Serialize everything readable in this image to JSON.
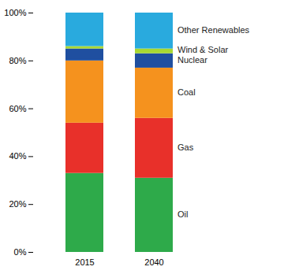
{
  "chart_data": {
    "type": "bar",
    "stacked": true,
    "categories": [
      "2015",
      "2040"
    ],
    "series": [
      {
        "name": "Oil",
        "color": "#2EAA4A",
        "values": [
          33,
          31
        ]
      },
      {
        "name": "Gas",
        "color": "#E8302A",
        "values": [
          21,
          25
        ]
      },
      {
        "name": "Coal",
        "color": "#F5921E",
        "values": [
          26,
          21
        ]
      },
      {
        "name": "Nuclear",
        "color": "#1F4FA0",
        "values": [
          5,
          6
        ]
      },
      {
        "name": "Wind & Solar",
        "color": "#A8D832",
        "values": [
          1,
          2
        ]
      },
      {
        "name": "Other Renewables",
        "color": "#29AADE",
        "values": [
          14,
          15
        ]
      }
    ],
    "ylim": [
      0,
      100
    ],
    "yticks": [
      {
        "value": 0,
        "label": "0%"
      },
      {
        "value": 20,
        "label": "20%"
      },
      {
        "value": 40,
        "label": "40%"
      },
      {
        "value": 60,
        "label": "60%"
      },
      {
        "value": 80,
        "label": "80%"
      },
      {
        "value": 100,
        "label": "100%"
      }
    ],
    "grid": false
  }
}
